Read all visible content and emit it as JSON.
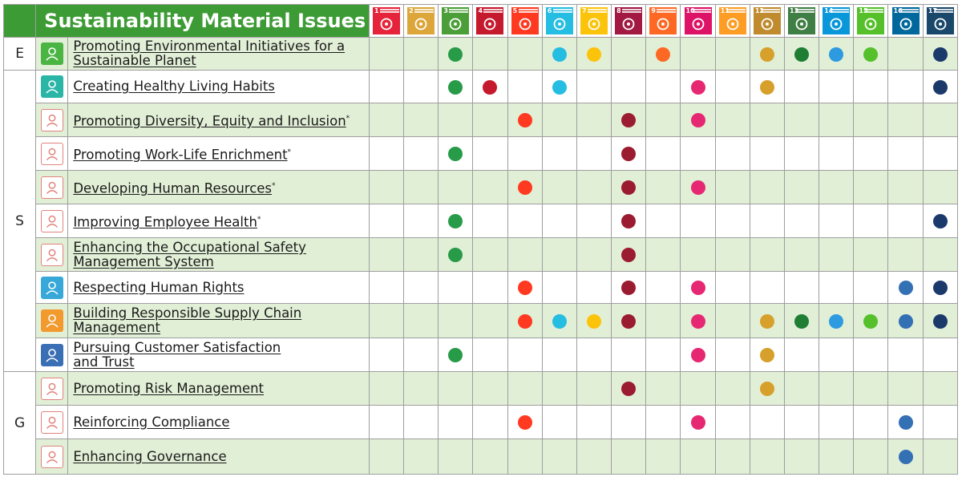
{
  "title": "Sustainability Material Issues",
  "categories": [
    {
      "letter": "E",
      "rows": 1
    },
    {
      "letter": "S",
      "rows": 9
    },
    {
      "letter": "G",
      "rows": 3
    }
  ],
  "sdgs": [
    {
      "num": "1",
      "color": "#e5243b",
      "icon": "people-icon"
    },
    {
      "num": "2",
      "color": "#dda63a",
      "icon": "bowl-icon"
    },
    {
      "num": "3",
      "color": "#4c9f38",
      "icon": "heartbeat-icon"
    },
    {
      "num": "4",
      "color": "#c5192d",
      "icon": "book-icon"
    },
    {
      "num": "5",
      "color": "#ff3a21",
      "icon": "gender-icon"
    },
    {
      "num": "6",
      "color": "#26bde2",
      "icon": "water-drop-icon"
    },
    {
      "num": "7",
      "color": "#fcc30b",
      "icon": "sun-icon"
    },
    {
      "num": "8",
      "color": "#a21942",
      "icon": "growth-chart-icon"
    },
    {
      "num": "9",
      "color": "#fd6925",
      "icon": "cubes-icon"
    },
    {
      "num": "10",
      "color": "#dd1367",
      "icon": "equality-icon"
    },
    {
      "num": "11",
      "color": "#fd9d24",
      "icon": "city-icon"
    },
    {
      "num": "12",
      "color": "#bf8b2e",
      "icon": "infinity-icon"
    },
    {
      "num": "13",
      "color": "#3f7e44",
      "icon": "eye-globe-icon"
    },
    {
      "num": "14",
      "color": "#0a97d9",
      "icon": "fish-icon"
    },
    {
      "num": "15",
      "color": "#56c02b",
      "icon": "tree-icon"
    },
    {
      "num": "16",
      "color": "#00689d",
      "icon": "dove-icon"
    },
    {
      "num": "17",
      "color": "#19486a",
      "icon": "flower-ring-icon"
    }
  ],
  "dot_colors": {
    "1": "#e5243b",
    "2": "#dda63a",
    "3": "#279b48",
    "4": "#c5192d",
    "5": "#ff3a21",
    "6": "#26bde2",
    "7": "#fcc30b",
    "8": "#9b1b30",
    "9": "#fd6925",
    "10": "#e62873",
    "11": "#fd9d24",
    "12": "#d6a02a",
    "13": "#1e7e34",
    "14": "#2e9be0",
    "15": "#56c02b",
    "16": "#3470b4",
    "17": "#1b3a6b"
  },
  "issues": [
    {
      "category": "E",
      "label": "Promoting Environmental Initiatives for a Sustainable Planet",
      "label_lines": [
        "Promoting Environmental Initiatives for a",
        "Sustainable Planet"
      ],
      "asterisk": "",
      "icon": "plant-icon",
      "icon_style": "solid",
      "icon_color": "#4bb544",
      "sdgs": [
        3,
        6,
        7,
        9,
        12,
        13,
        14,
        15,
        17
      ]
    },
    {
      "category": "S",
      "label": "Creating Healthy Living Habits",
      "label_lines": [
        "Creating Healthy Living Habits"
      ],
      "asterisk": "",
      "icon": "person-health-icon",
      "icon_style": "solid",
      "icon_color": "#2ab5a6",
      "sdgs": [
        3,
        4,
        6,
        10,
        12,
        17
      ]
    },
    {
      "category": "S",
      "label": "Promoting Diversity, Equity and Inclusion",
      "label_lines": [
        "Promoting Diversity, Equity and Inclusion"
      ],
      "asterisk": "*",
      "icon": "globe-people-icon",
      "icon_style": "outline",
      "icon_color": "#e0837a",
      "sdgs": [
        5,
        8,
        10
      ]
    },
    {
      "category": "S",
      "label": "Promoting Work-Life Enrichment",
      "label_lines": [
        "Promoting Work-Life Enrichment"
      ],
      "asterisk": "*",
      "icon": "balance-scale-icon",
      "icon_style": "outline",
      "icon_color": "#e0837a",
      "sdgs": [
        3,
        8
      ]
    },
    {
      "category": "S",
      "label": "Developing Human Resources",
      "label_lines": [
        "Developing Human Resources"
      ],
      "asterisk": "*",
      "icon": "presentation-icon",
      "icon_style": "outline",
      "icon_color": "#e0837a",
      "sdgs": [
        5,
        8,
        10
      ]
    },
    {
      "category": "S",
      "label": "Improving Employee Health",
      "label_lines": [
        "Improving Employee Health"
      ],
      "asterisk": "*",
      "icon": "stethoscope-icon",
      "icon_style": "outline",
      "icon_color": "#e0837a",
      "sdgs": [
        3,
        8,
        17
      ]
    },
    {
      "category": "S",
      "label": "Enhancing the Occupational Safety Management System",
      "label_lines": [
        "Enhancing the Occupational Safety",
        "Management  System"
      ],
      "asterisk": "",
      "icon": "hard-hat-icon",
      "icon_style": "outline",
      "icon_color": "#e0837a",
      "sdgs": [
        3,
        8
      ]
    },
    {
      "category": "S",
      "label": "Respecting Human Rights",
      "label_lines": [
        "Respecting Human Rights"
      ],
      "asterisk": "",
      "icon": "handshake-icon",
      "icon_style": "solid",
      "icon_color": "#37a8d8",
      "sdgs": [
        5,
        8,
        10,
        16,
        17
      ]
    },
    {
      "category": "S",
      "label": "Building Responsible Supply Chain Management",
      "label_lines": [
        "Building Responsible Supply Chain",
        "Management"
      ],
      "asterisk": "",
      "icon": "cycle-icon",
      "icon_style": "solid",
      "icon_color": "#f29a2e",
      "sdgs": [
        5,
        6,
        7,
        8,
        10,
        12,
        13,
        14,
        15,
        16,
        17
      ]
    },
    {
      "category": "S",
      "label": "Pursuing Customer Satisfaction and Trust",
      "label_lines": [
        "Pursuing Customer Satisfaction",
        "and Trust"
      ],
      "asterisk": "",
      "icon": "customer-icon",
      "icon_style": "solid",
      "icon_color": "#3a6fb5",
      "sdgs": [
        3,
        10,
        12
      ]
    },
    {
      "category": "G",
      "label": "Promoting Risk Management",
      "label_lines": [
        "Promoting Risk Management"
      ],
      "asterisk": "",
      "icon": "warning-icon",
      "icon_style": "outline",
      "icon_color": "#e0837a",
      "sdgs": [
        8,
        12
      ]
    },
    {
      "category": "G",
      "label": "Reinforcing Compliance",
      "label_lines": [
        "Reinforcing Compliance"
      ],
      "asterisk": "",
      "icon": "clipboard-icon",
      "icon_style": "outline",
      "icon_color": "#e0837a",
      "sdgs": [
        5,
        10,
        16
      ]
    },
    {
      "category": "G",
      "label": "Enhancing Governance",
      "label_lines": [
        "Enhancing Governance"
      ],
      "asterisk": "",
      "icon": "document-icon",
      "icon_style": "outline",
      "icon_color": "#e0837a",
      "sdgs": [
        16
      ]
    }
  ]
}
